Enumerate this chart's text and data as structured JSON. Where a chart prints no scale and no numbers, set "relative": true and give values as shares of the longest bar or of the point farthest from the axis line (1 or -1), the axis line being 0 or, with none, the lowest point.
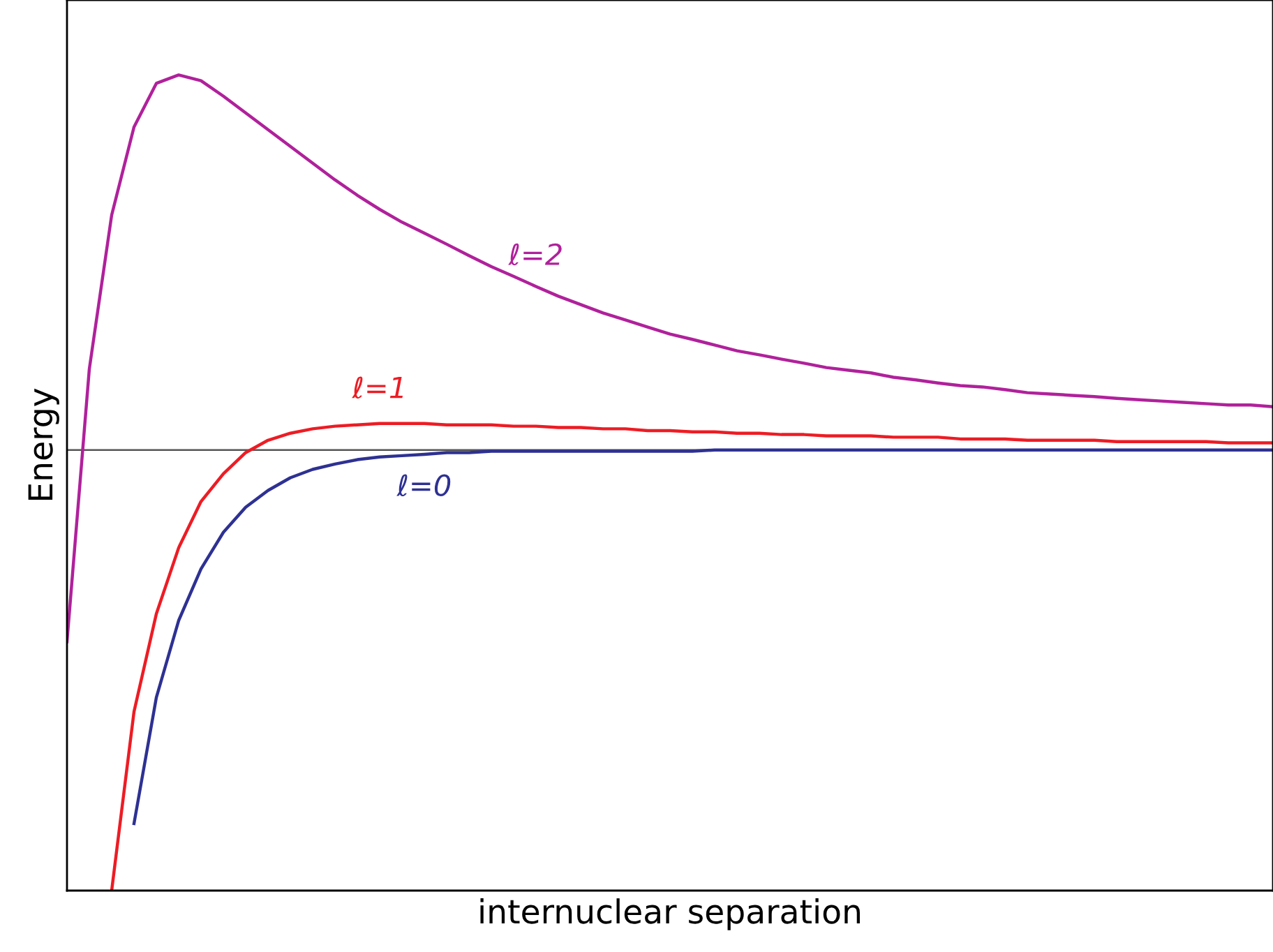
{
  "chart_data": {
    "type": "line",
    "relative": true,
    "xlabel": "internuclear separation",
    "ylabel": "Energy",
    "categories": [
      null,
      null,
      null,
      null,
      null,
      null,
      null,
      null,
      null,
      null,
      null,
      null,
      null,
      null,
      null,
      null,
      null,
      null,
      null,
      null,
      null,
      null,
      null,
      null,
      null,
      null,
      null,
      null,
      null,
      null,
      null,
      null,
      null,
      null,
      null,
      null,
      null,
      null,
      null,
      null,
      null,
      null,
      null,
      null,
      null,
      null,
      null,
      null,
      null,
      null,
      null,
      null,
      null,
      null,
      null
    ],
    "series": [
      {
        "name": "ℓ=2",
        "color": "#b0219b",
        "values": [
          -0.435,
          0.184,
          0.533,
          0.733,
          0.832,
          0.851,
          0.838,
          0.803,
          0.765,
          0.727,
          0.689,
          0.651,
          0.613,
          0.578,
          0.546,
          0.517,
          0.492,
          0.467,
          0.441,
          0.416,
          0.394,
          0.371,
          0.349,
          0.33,
          0.311,
          0.295,
          0.279,
          0.263,
          0.251,
          0.238,
          0.225,
          0.216,
          0.206,
          0.197,
          0.187,
          0.181,
          0.175,
          0.165,
          0.159,
          0.152,
          0.146,
          0.143,
          0.137,
          0.13,
          0.127,
          0.124,
          0.121,
          0.117,
          0.114,
          0.111,
          0.108,
          0.105,
          0.102,
          0.102,
          0.098
        ]
      },
      {
        "name": "ℓ=1",
        "color": "#ed1c24",
        "values": [
          null,
          null,
          -1,
          -0.594,
          -0.372,
          -0.222,
          -0.117,
          -0.054,
          -0.006,
          0.022,
          0.038,
          0.048,
          0.054,
          0.057,
          0.06,
          0.06,
          0.06,
          0.057,
          0.057,
          0.057,
          0.054,
          0.054,
          0.051,
          0.051,
          0.048,
          0.048,
          0.044,
          0.044,
          0.041,
          0.041,
          0.038,
          0.038,
          0.035,
          0.035,
          0.032,
          0.032,
          0.032,
          0.029,
          0.029,
          0.029,
          0.025,
          0.025,
          0.025,
          0.022,
          0.022,
          0.022,
          0.022,
          0.019,
          0.019,
          0.019,
          0.019,
          0.019,
          0.016,
          0.016,
          0.016
        ]
      },
      {
        "name": "ℓ=0",
        "color": "#2e3192",
        "values": [
          null,
          null,
          null,
          -0.848,
          -0.562,
          -0.387,
          -0.27,
          -0.187,
          -0.13,
          -0.092,
          -0.063,
          -0.044,
          -0.032,
          -0.022,
          -0.016,
          -0.013,
          -0.01,
          -0.006,
          -0.006,
          -0.003,
          -0.003,
          -0.003,
          -0.003,
          -0.003,
          -0.003,
          -0.003,
          -0.003,
          -0.003,
          -0.003,
          0,
          0,
          0,
          0,
          0,
          0,
          0,
          0,
          0,
          0,
          0,
          0,
          0,
          0,
          0,
          0,
          0,
          0,
          0,
          0,
          0,
          0,
          0,
          0,
          0,
          0
        ]
      }
    ]
  }
}
